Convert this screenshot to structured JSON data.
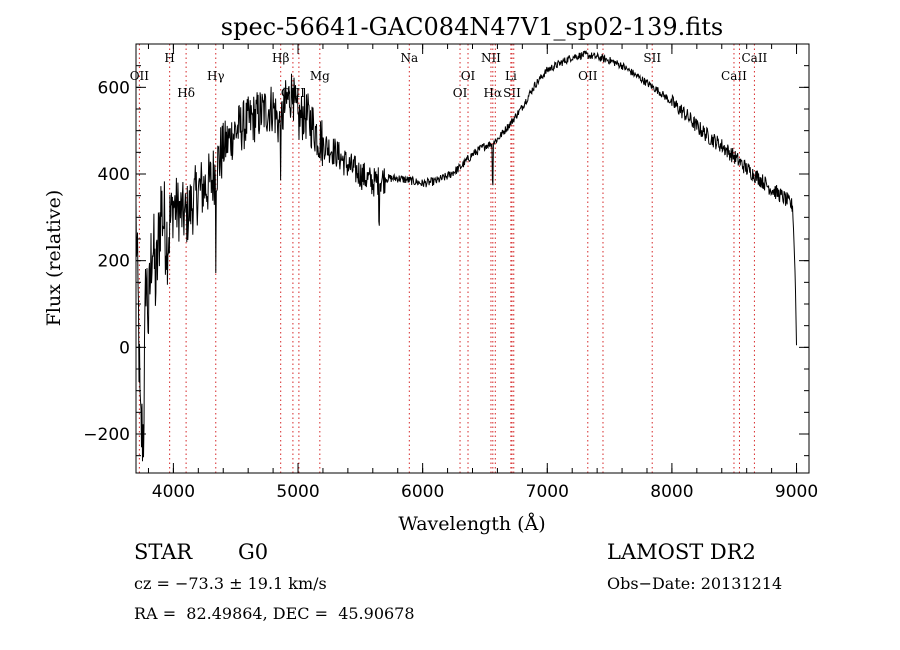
{
  "chart_data": {
    "type": "line",
    "title": "spec-56641-GAC084N47V1_sp02-139.fits",
    "xlabel": "Wavelength (Å)",
    "ylabel": "Flux (relative)",
    "xlim": [
      3700,
      9100
    ],
    "ylim": [
      -290,
      700
    ],
    "xticks": [
      4000,
      5000,
      6000,
      7000,
      8000,
      9000
    ],
    "xtick_labels": [
      "4000",
      "5000",
      "6000",
      "7000",
      "8000",
      "9000"
    ],
    "yticks": [
      -200,
      0,
      200,
      400,
      600
    ],
    "ytick_labels": [
      "−200",
      "0",
      "200",
      "400",
      "600"
    ],
    "x_minor_step": 200,
    "y_minor_step": 50,
    "line_color": "#000000",
    "marker_color": "#d62728",
    "spectrum_anchors": [
      [
        3700,
        300
      ],
      [
        3720,
        60
      ],
      [
        3735,
        -195
      ],
      [
        3760,
        -195
      ],
      [
        3780,
        180
      ],
      [
        3800,
        60
      ],
      [
        3830,
        260
      ],
      [
        3860,
        140
      ],
      [
        3900,
        330
      ],
      [
        3950,
        250
      ],
      [
        4000,
        330
      ],
      [
        4100,
        300
      ],
      [
        4200,
        360
      ],
      [
        4300,
        380
      ],
      [
        4400,
        460
      ],
      [
        4500,
        500
      ],
      [
        4600,
        520
      ],
      [
        4700,
        540
      ],
      [
        4800,
        555
      ],
      [
        4850,
        510
      ],
      [
        4900,
        560
      ],
      [
        4950,
        590
      ],
      [
        5000,
        520
      ],
      [
        5050,
        540
      ],
      [
        5100,
        520
      ],
      [
        5200,
        470
      ],
      [
        5300,
        450
      ],
      [
        5400,
        420
      ],
      [
        5500,
        400
      ],
      [
        5600,
        380
      ],
      [
        5700,
        390
      ],
      [
        5800,
        390
      ],
      [
        5900,
        385
      ],
      [
        6000,
        378
      ],
      [
        6100,
        383
      ],
      [
        6200,
        395
      ],
      [
        6300,
        415
      ],
      [
        6400,
        445
      ],
      [
        6500,
        465
      ],
      [
        6550,
        470
      ],
      [
        6600,
        480
      ],
      [
        6700,
        515
      ],
      [
        6800,
        555
      ],
      [
        6900,
        605
      ],
      [
        7000,
        640
      ],
      [
        7100,
        655
      ],
      [
        7200,
        670
      ],
      [
        7300,
        675
      ],
      [
        7400,
        670
      ],
      [
        7500,
        662
      ],
      [
        7600,
        650
      ],
      [
        7700,
        630
      ],
      [
        7800,
        610
      ],
      [
        7900,
        590
      ],
      [
        8000,
        565
      ],
      [
        8100,
        540
      ],
      [
        8200,
        510
      ],
      [
        8300,
        485
      ],
      [
        8400,
        465
      ],
      [
        8500,
        440
      ],
      [
        8600,
        412
      ],
      [
        8700,
        390
      ],
      [
        8800,
        365
      ],
      [
        8900,
        345
      ],
      [
        8970,
        325
      ],
      [
        8985,
        200
      ],
      [
        8990,
        160
      ],
      [
        9000,
        5
      ]
    ],
    "noise": [
      {
        "from": 3700,
        "to": 3980,
        "amp": 110
      },
      {
        "from": 3980,
        "to": 4400,
        "amp": 75
      },
      {
        "from": 4400,
        "to": 5200,
        "amp": 60
      },
      {
        "from": 5200,
        "to": 5700,
        "amp": 35
      },
      {
        "from": 5700,
        "to": 6500,
        "amp": 10
      },
      {
        "from": 6500,
        "to": 8000,
        "amp": 9
      },
      {
        "from": 8000,
        "to": 8980,
        "amp": 18
      }
    ],
    "features": [
      {
        "x": 6563,
        "drop": 90
      },
      {
        "x": 4340,
        "drop": 180
      },
      {
        "x": 4862,
        "drop": 80
      },
      {
        "x": 5650,
        "drop": 70
      },
      {
        "x": 4960,
        "drop": -80
      }
    ],
    "line_markers": [
      {
        "x": 3727,
        "label": "OII",
        "row": "mid"
      },
      {
        "x": 3970,
        "label": "H",
        "row": "top"
      },
      {
        "x": 4102,
        "label": "Hδ",
        "row": "low"
      },
      {
        "x": 4340,
        "label": "Hγ",
        "row": "mid"
      },
      {
        "x": 4861,
        "label": "Hβ",
        "row": "top"
      },
      {
        "x": 4959,
        "label": "OIII",
        "row": "low"
      },
      {
        "x": 5007,
        "label": "",
        "row": "none"
      },
      {
        "x": 5175,
        "label": "Mg",
        "row": "mid"
      },
      {
        "x": 5893,
        "label": "Na",
        "row": "top"
      },
      {
        "x": 6300,
        "label": "OI",
        "row": "low"
      },
      {
        "x": 6364,
        "label": "OI",
        "row": "mid"
      },
      {
        "x": 6548,
        "label": "NII",
        "row": "top"
      },
      {
        "x": 6563,
        "label": "Hα",
        "row": "low"
      },
      {
        "x": 6583,
        "label": "",
        "row": "none"
      },
      {
        "x": 6708,
        "label": "Li",
        "row": "mid"
      },
      {
        "x": 6717,
        "label": "SII",
        "row": "low"
      },
      {
        "x": 6731,
        "label": "",
        "row": "none"
      },
      {
        "x": 7325,
        "label": "OII",
        "row": "mid"
      },
      {
        "x": 7447,
        "label": "",
        "row": "none"
      },
      {
        "x": 7842,
        "label": "SII",
        "row": "top"
      },
      {
        "x": 8498,
        "label": "CaII",
        "row": "mid"
      },
      {
        "x": 8542,
        "label": "",
        "row": "none"
      },
      {
        "x": 8662,
        "label": "CaII",
        "row": "top"
      }
    ]
  },
  "info": {
    "object_class": "STAR",
    "subclass": "G0",
    "survey": "LAMOST DR2",
    "redshift": "cz = −73.3 ± 19.1 km/s",
    "obs_date": "Obs−Date: 20131214",
    "coords": "RA =  82.49864, DEC =  45.90678"
  }
}
